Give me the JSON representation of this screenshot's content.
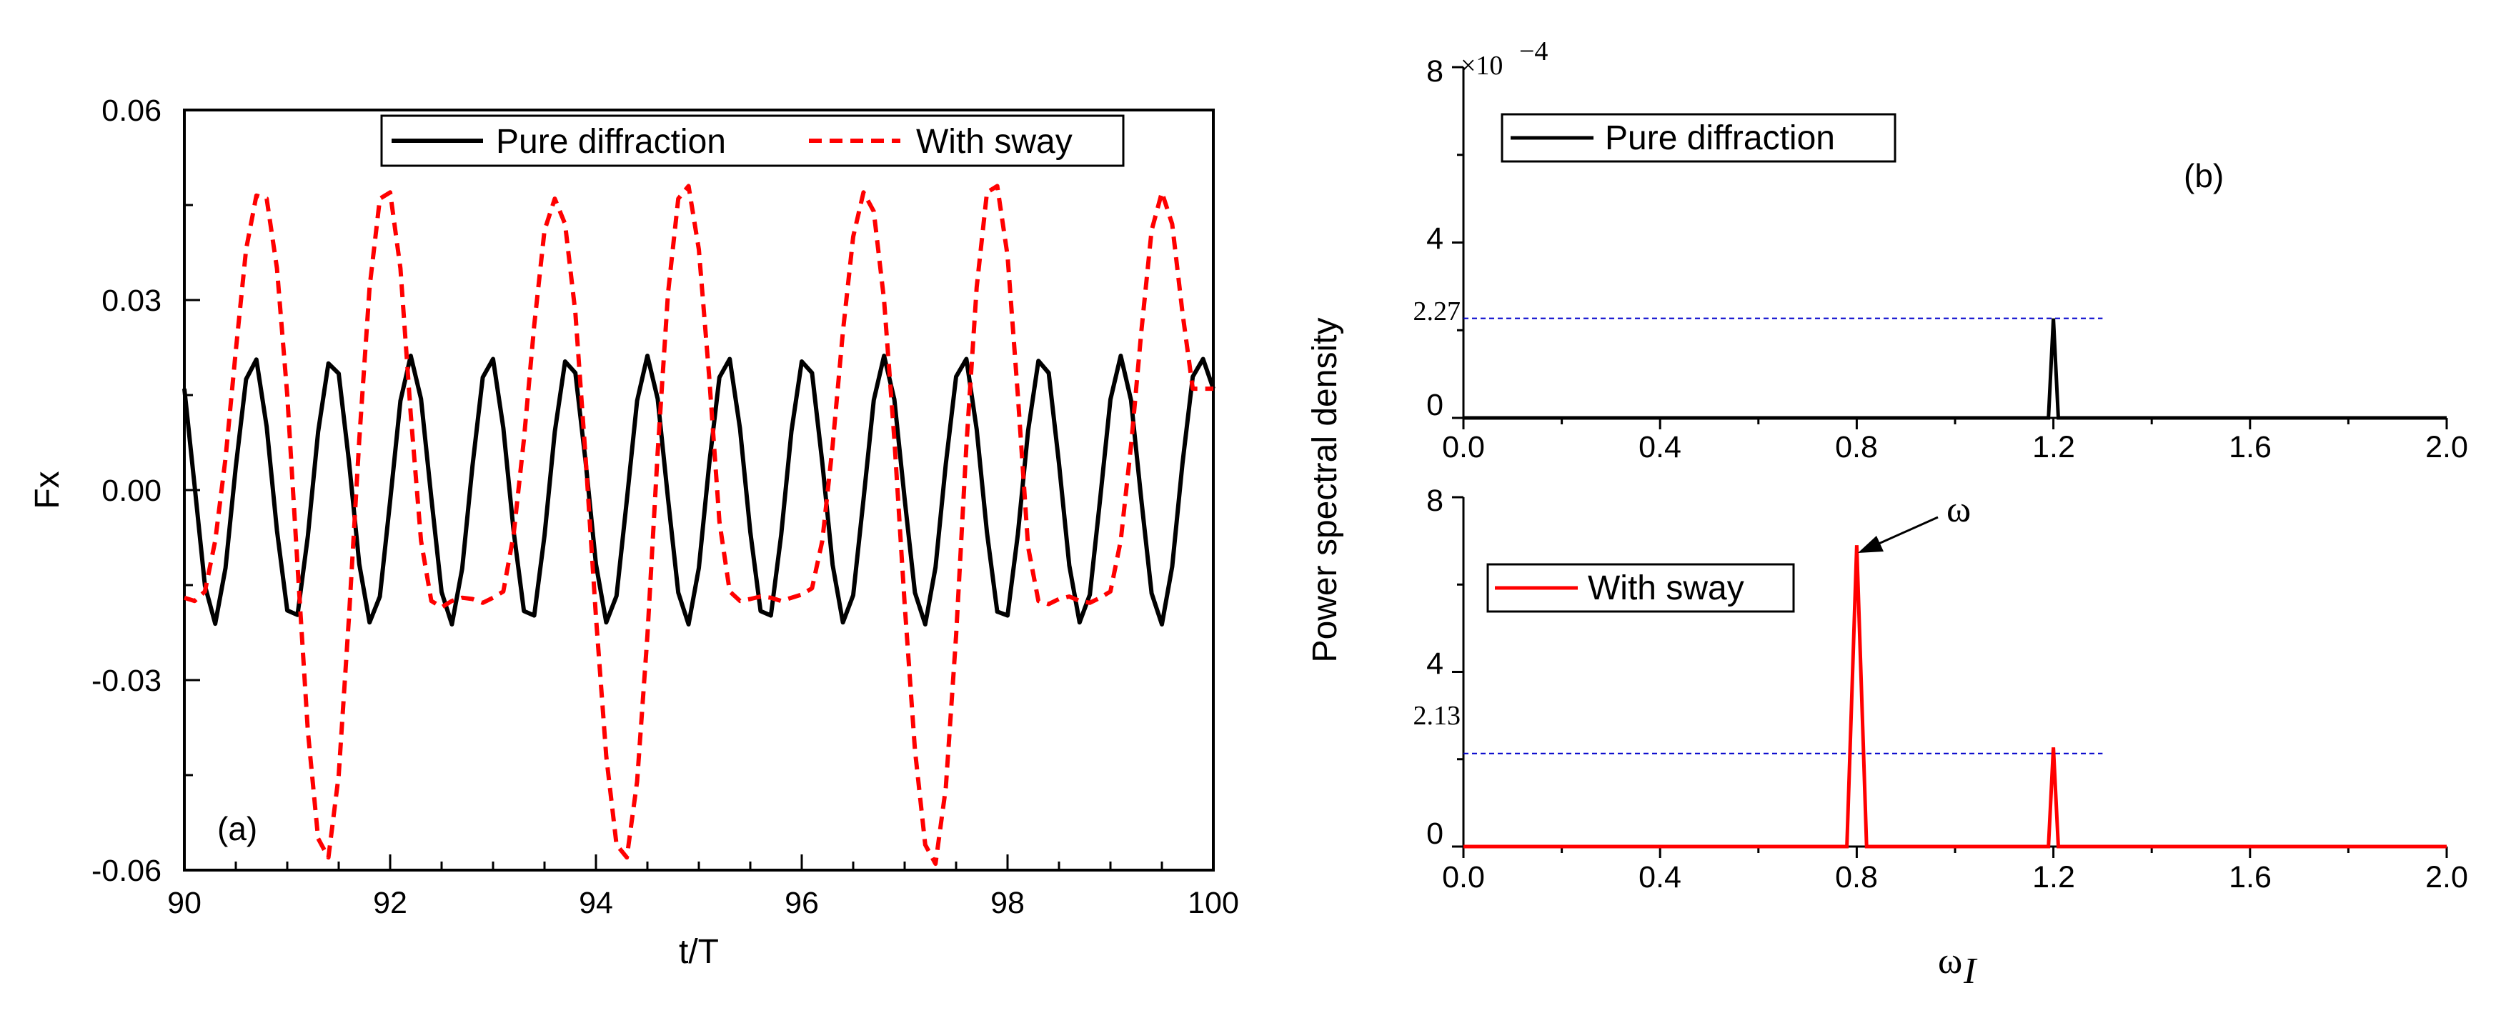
{
  "colors": {
    "pure": "#000000",
    "sway": "#ff0000",
    "refline": "#0000cc"
  },
  "chart_data": [
    {
      "type": "line",
      "panel": "(a)",
      "xlabel": "t/T",
      "ylabel": "Fx",
      "xlim": [
        90,
        100
      ],
      "ylim": [
        -0.06,
        0.06
      ],
      "xticks": [
        "90",
        "92",
        "94",
        "96",
        "98",
        "100"
      ],
      "yticks": [
        "-0.06",
        "-0.03",
        "0.00",
        "0.03",
        "0.06"
      ],
      "legend": [
        "Pure diffraction",
        "With sway"
      ],
      "legend_position": "top",
      "series": [
        {
          "name": "Pure diffraction",
          "style": "solid",
          "x": [
            90.0,
            90.1,
            90.2,
            90.3,
            90.4,
            90.5,
            90.6,
            90.7,
            90.8,
            90.9,
            91.0,
            91.1,
            91.2,
            91.3,
            91.4,
            91.5,
            91.6,
            91.7,
            91.8,
            91.9,
            92.0,
            92.1,
            92.2,
            92.3,
            92.4,
            92.5,
            92.6,
            92.7,
            92.8,
            92.9,
            93.0,
            93.1,
            93.2,
            93.3,
            93.4,
            93.5,
            93.6,
            93.7,
            93.8,
            93.9,
            94.0,
            94.1,
            94.2,
            94.3,
            94.4,
            94.5,
            94.6,
            94.7,
            94.8,
            94.9,
            95.0,
            95.1,
            95.2,
            95.3,
            95.4,
            95.5,
            95.6,
            95.7,
            95.8,
            95.9,
            96.0,
            96.1,
            96.2,
            96.3,
            96.4,
            96.5,
            96.6,
            96.7,
            96.8,
            96.9,
            97.0,
            97.1,
            97.2,
            97.3,
            97.4,
            97.5,
            97.6,
            97.7,
            97.8,
            97.9,
            98.0,
            98.1,
            98.2,
            98.3,
            98.4,
            98.5,
            98.6,
            98.7,
            98.8,
            98.9,
            99.0,
            99.1,
            99.2,
            99.3,
            99.4,
            99.5,
            99.6,
            99.7,
            99.8,
            99.9,
            100.0
          ],
          "y": [
            0.016,
            0.0006,
            -0.0151,
            -0.0211,
            -0.0123,
            0.0037,
            0.0175,
            0.0206,
            0.01,
            -0.0064,
            -0.019,
            -0.0197,
            -0.0073,
            0.0092,
            0.02,
            0.0184,
            0.0045,
            -0.0117,
            -0.0209,
            -0.0168,
            -0.0017,
            0.0141,
            0.0212,
            0.0144,
            -0.0012,
            -0.0161,
            -0.0212,
            -0.0124,
            0.0038,
            0.0178,
            0.0207,
            0.0098,
            -0.0065,
            -0.0191,
            -0.0198,
            -0.0072,
            0.0092,
            0.0203,
            0.0185,
            0.0044,
            -0.0117,
            -0.0209,
            -0.0167,
            -0.0016,
            0.0141,
            0.0212,
            0.0144,
            -0.0013,
            -0.0162,
            -0.0212,
            -0.0123,
            0.004,
            0.0178,
            0.0207,
            0.0097,
            -0.0066,
            -0.0191,
            -0.0198,
            -0.0071,
            0.0093,
            0.0203,
            0.0185,
            0.0043,
            -0.0118,
            -0.0209,
            -0.0166,
            -0.0015,
            0.0142,
            0.0212,
            0.0143,
            -0.0014,
            -0.0162,
            -0.0212,
            -0.0122,
            0.0041,
            0.0179,
            0.0207,
            0.0096,
            -0.0067,
            -0.0192,
            -0.0198,
            -0.007,
            0.0094,
            0.0204,
            0.0185,
            0.0042,
            -0.0119,
            -0.0209,
            -0.0165,
            -0.0014,
            0.0143,
            0.0212,
            0.0142,
            -0.0015,
            -0.0163,
            -0.0212,
            -0.0121,
            0.0042,
            0.0179,
            0.0207,
            0.016
          ]
        },
        {
          "name": "With sway",
          "style": "dashed",
          "x": [
            90.0,
            90.1,
            90.2,
            90.3,
            90.4,
            90.5,
            90.6,
            90.7,
            90.8,
            90.9,
            91.0,
            91.1,
            91.2,
            91.3,
            91.4,
            91.5,
            91.6,
            91.7,
            91.8,
            91.9,
            92.0,
            92.1,
            92.2,
            92.3,
            92.4,
            92.5,
            92.6,
            92.7,
            92.8,
            92.9,
            93.0,
            93.1,
            93.2,
            93.3,
            93.4,
            93.5,
            93.6,
            93.7,
            93.8,
            93.9,
            94.0,
            94.1,
            94.2,
            94.3,
            94.4,
            94.5,
            94.6,
            94.7,
            94.8,
            94.9,
            95.0,
            95.1,
            95.2,
            95.3,
            95.4,
            95.5,
            95.6,
            95.7,
            95.8,
            95.9,
            96.0,
            96.1,
            96.2,
            96.3,
            96.4,
            96.5,
            96.6,
            96.7,
            96.8,
            96.9,
            97.0,
            97.1,
            97.2,
            97.3,
            97.4,
            97.5,
            97.6,
            97.7,
            97.8,
            97.9,
            98.0,
            98.1,
            98.2,
            98.3,
            98.4,
            98.5,
            98.6,
            98.7,
            98.8,
            98.9,
            99.0,
            99.1,
            99.2,
            99.3,
            99.4,
            99.5,
            99.6,
            99.7,
            99.8,
            99.9,
            100.0
          ],
          "y": [
            -0.017,
            -0.0175,
            -0.016,
            -0.008,
            0.005,
            0.022,
            0.038,
            0.0465,
            0.046,
            0.035,
            0.015,
            -0.012,
            -0.038,
            -0.055,
            -0.058,
            -0.045,
            -0.02,
            0.008,
            0.032,
            0.046,
            0.047,
            0.035,
            0.012,
            -0.008,
            -0.0175,
            -0.0185,
            -0.0175,
            -0.017,
            -0.0172,
            -0.0178,
            -0.017,
            -0.016,
            -0.007,
            0.008,
            0.026,
            0.041,
            0.046,
            0.042,
            0.028,
            0.005,
            -0.02,
            -0.042,
            -0.056,
            -0.058,
            -0.046,
            -0.023,
            0.006,
            0.031,
            0.046,
            0.048,
            0.038,
            0.018,
            -0.005,
            -0.016,
            -0.0175,
            -0.0172,
            -0.0168,
            -0.017,
            -0.0175,
            -0.017,
            -0.0165,
            -0.0155,
            -0.008,
            0.007,
            0.025,
            0.04,
            0.047,
            0.044,
            0.03,
            0.008,
            -0.018,
            -0.041,
            -0.056,
            -0.059,
            -0.047,
            -0.023,
            0.007,
            0.032,
            0.047,
            0.048,
            0.037,
            0.015,
            -0.009,
            -0.0175,
            -0.018,
            -0.0172,
            -0.0168,
            -0.0175,
            -0.0178,
            -0.017,
            -0.016,
            -0.008,
            0.007,
            0.025,
            0.041,
            0.047,
            0.042,
            0.028,
            0.016,
            0.016,
            0.016
          ]
        }
      ]
    },
    {
      "type": "line",
      "panel": "(b)",
      "ylabel": "Power spectral density",
      "xlim": [
        0,
        2
      ],
      "ylim": [
        0,
        8
      ],
      "exponent_label": "×10",
      "exponent_value": "−4",
      "xticks": [
        "0.0",
        "0.4",
        "0.8",
        "1.2",
        "1.6",
        "2.0"
      ],
      "yticks": [
        "0",
        "4",
        "8"
      ],
      "legend": [
        "Pure diffraction"
      ],
      "legend_position": "top-left",
      "reference_line": {
        "value": 2.27,
        "label": "2.27"
      },
      "series": [
        {
          "name": "Pure diffraction",
          "x": [
            0,
            1.19,
            1.2,
            1.21,
            2.0
          ],
          "y": [
            0,
            0,
            2.27,
            0,
            0
          ]
        }
      ]
    },
    {
      "type": "line",
      "xlabel": "ω",
      "xlabel_sub": "I",
      "xlim": [
        0,
        2
      ],
      "ylim": [
        0,
        8
      ],
      "xticks": [
        "0.0",
        "0.4",
        "0.8",
        "1.2",
        "1.6",
        "2.0"
      ],
      "yticks": [
        "0",
        "4",
        "8"
      ],
      "legend": [
        "With sway"
      ],
      "legend_position": "left",
      "reference_line": {
        "value": 2.13,
        "label": "2.13"
      },
      "annotation": {
        "text": "ω",
        "x": 0.8,
        "y": 6.9
      },
      "series": [
        {
          "name": "With sway",
          "x": [
            0,
            0.78,
            0.8,
            0.82,
            1.19,
            1.2,
            1.21,
            2.0
          ],
          "y": [
            0,
            0,
            6.9,
            0,
            0,
            2.27,
            0,
            0
          ]
        }
      ]
    }
  ]
}
